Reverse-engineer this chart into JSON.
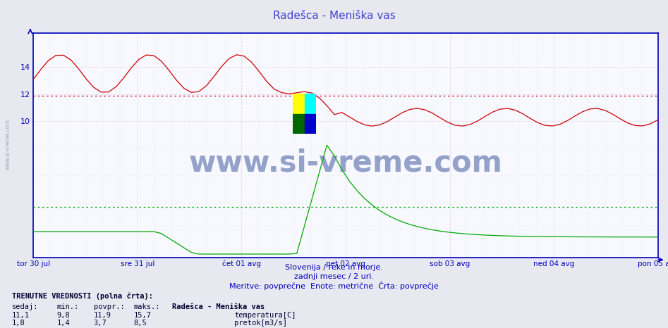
{
  "title": "Radešca - Meniška vas",
  "title_color": "#4444cc",
  "bg_color": "#e8e8f0",
  "plot_bg_color": "#f8f8ff",
  "xlabel_ticks": [
    "tor 30 jul",
    "sre 31 jul",
    "čet 01 avg",
    "pet 02 avg",
    "sob 03 avg",
    "ned 04 avg",
    "pon 05 avg"
  ],
  "temp_color": "#cc0000",
  "flow_color": "#00aa00",
  "temp_avg_line": 11.9,
  "flow_avg_line": 3.7,
  "ymin": 0,
  "ymax": 16.5,
  "yticks": [
    10,
    12,
    14
  ],
  "subtitle1": "Slovenija / reke in morje.",
  "subtitle2": "zadnji mesec / 2 uri.",
  "subtitle3": "Meritve: povprečne  Enote: metrične  Črta: povprečje",
  "footer_bold": "TRENUTNE VREDNOSTI (polna črta):",
  "footer_headers": [
    "sedaj:",
    "min.:",
    "povpr.:",
    "maks.:",
    "Radešca - Meniška vas"
  ],
  "footer_row1": [
    "11,1",
    "9,8",
    "11,9",
    "15,7",
    "temperatura[C]"
  ],
  "footer_row2": [
    "1,8",
    "1,4",
    "3,7",
    "8,5",
    "pretok[m3/s]"
  ],
  "watermark": "www.si-vreme.com",
  "watermark_color": "#1a3a8a",
  "axis_color": "#0000bb",
  "grid_color": "#ccccdd",
  "n_points": 84,
  "n_days": 7,
  "temp_base1": 13.5,
  "temp_amp1": 1.4,
  "temp_period1_days": 1.0,
  "temp_drop_day": 3.0,
  "temp_base2": 10.3,
  "temp_amp2": 0.65,
  "temp_period2_days": 1.0,
  "flow_base1": 1.9,
  "flow_drop_day": 1.5,
  "flow_drop_val": 0.25,
  "flow_spike_day": 3.05,
  "flow_spike_val": 8.5,
  "flow_decay_rate": 2.2
}
